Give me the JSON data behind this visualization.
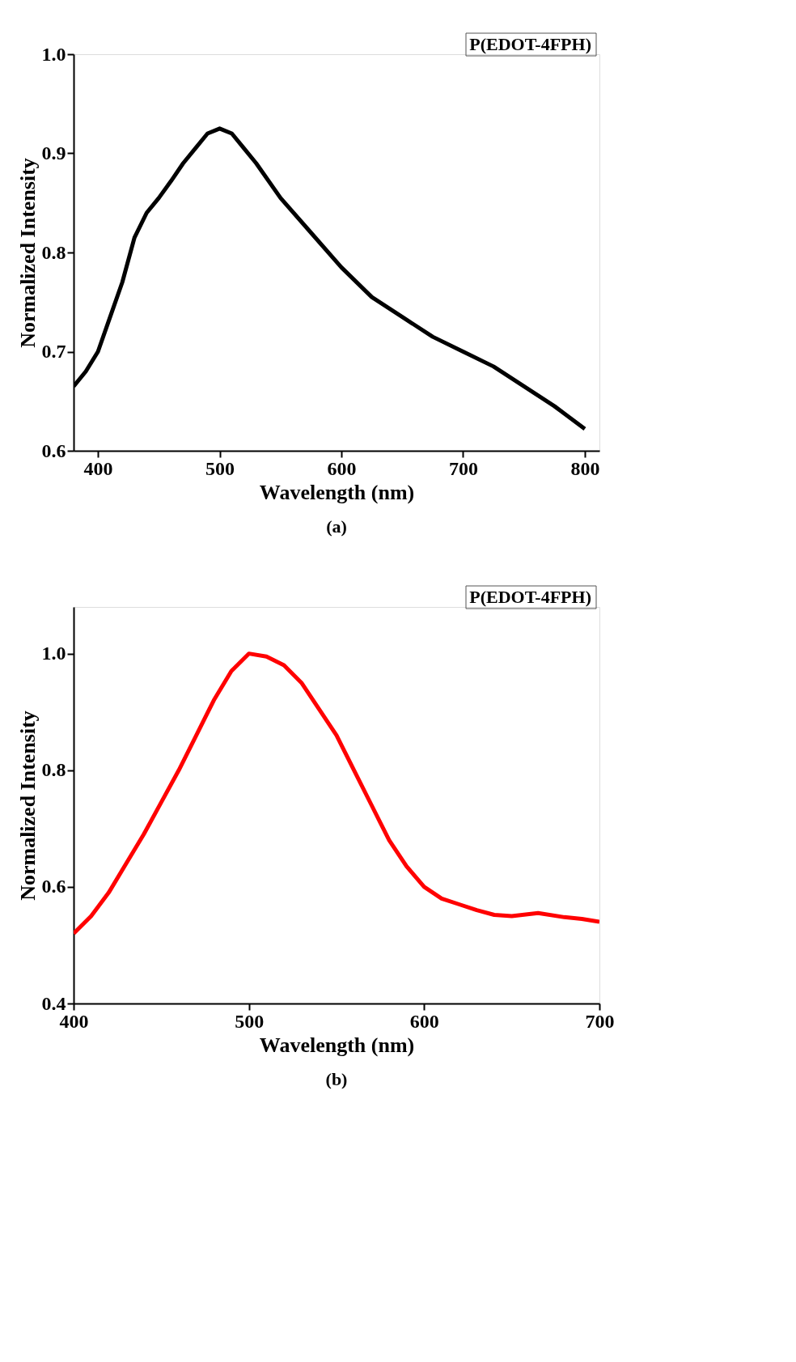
{
  "chart_data": [
    {
      "type": "line",
      "xlabel": "Wavelength (nm)",
      "ylabel": "Normalized Intensity",
      "xlim": [
        380,
        812
      ],
      "ylim": [
        0.6,
        1.0
      ],
      "xticks": [
        400,
        500,
        600,
        700,
        800
      ],
      "yticks": [
        0.6,
        0.7,
        0.8,
        0.9,
        {
          "value": 1.0,
          "label": "1.0"
        }
      ],
      "grid": false,
      "line_style": "solid",
      "marker": "none",
      "annotations": [
        "P(EDOT-4FPH)",
        "(a)"
      ],
      "x": [
        380,
        390,
        400,
        410,
        420,
        430,
        440,
        450,
        460,
        470,
        480,
        490,
        500,
        510,
        520,
        530,
        550,
        575,
        600,
        625,
        650,
        675,
        700,
        725,
        750,
        775,
        800
      ],
      "series": [
        {
          "color": "#000000",
          "values": [
            0.665,
            0.68,
            0.7,
            0.735,
            0.77,
            0.815,
            0.84,
            0.855,
            0.872,
            0.89,
            0.905,
            0.92,
            0.925,
            0.92,
            0.905,
            0.89,
            0.855,
            0.82,
            0.785,
            0.755,
            0.735,
            0.715,
            0.7,
            0.685,
            0.665,
            0.645,
            0.622
          ]
        }
      ]
    },
    {
      "type": "line",
      "xlabel": "Wavelength (nm)",
      "ylabel": "Normalized Intensity",
      "xlim": [
        400,
        700
      ],
      "ylim": [
        0.4,
        1.08
      ],
      "xticks": [
        400,
        500,
        600,
        700
      ],
      "yticks": [
        0.4,
        0.6,
        0.8,
        {
          "value": 1.0,
          "label": "1.0"
        }
      ],
      "grid": false,
      "line_style": "solid",
      "marker": "none",
      "annotations": [
        "P(EDOT-4FPH)",
        "(b)"
      ],
      "x": [
        400,
        410,
        420,
        430,
        440,
        450,
        460,
        470,
        480,
        490,
        500,
        510,
        520,
        530,
        540,
        550,
        560,
        570,
        580,
        590,
        600,
        610,
        620,
        630,
        640,
        650,
        665,
        680,
        690,
        700
      ],
      "series": [
        {
          "color": "#ff0000",
          "values": [
            0.52,
            0.55,
            0.59,
            0.64,
            0.69,
            0.745,
            0.8,
            0.86,
            0.92,
            0.97,
            1.0,
            0.995,
            0.98,
            0.95,
            0.905,
            0.86,
            0.8,
            0.74,
            0.68,
            0.635,
            0.6,
            0.58,
            0.57,
            0.56,
            0.552,
            0.55,
            0.555,
            0.548,
            0.545,
            0.54
          ]
        }
      ]
    }
  ]
}
